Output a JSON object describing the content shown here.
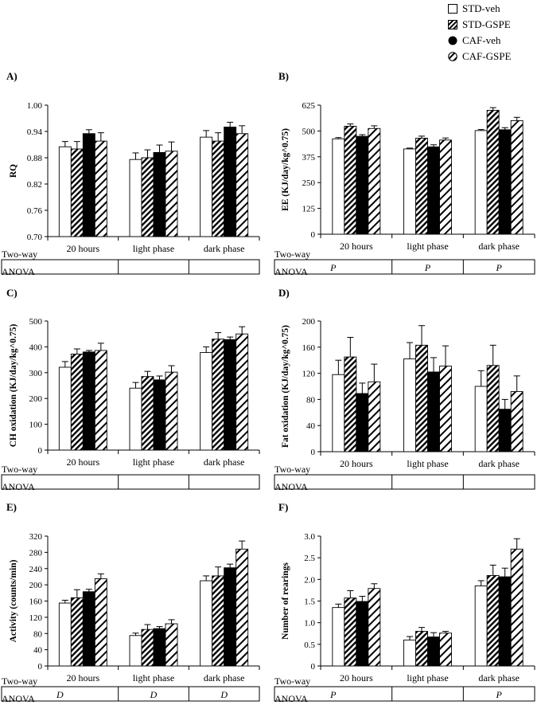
{
  "legend": [
    {
      "label": "STD-veh",
      "pattern": "white"
    },
    {
      "label": "STD-GSPE",
      "pattern": "hatch"
    },
    {
      "label": "CAF-veh",
      "pattern": "black"
    },
    {
      "label": "CAF-GSPE",
      "pattern": "hatch-white"
    }
  ],
  "colors": {
    "bar_black": "#000000",
    "bar_white": "#ffffff",
    "axis": "#000000",
    "stroke": "#000000"
  },
  "anova_label": [
    "Two-way",
    "ANOVA"
  ],
  "chart_data": [
    {
      "panel_label": "A)",
      "type": "bar",
      "ylabel": "RQ",
      "ylim": [
        0.7,
        1.0
      ],
      "yticks": [
        "0.70",
        "0.76",
        "0.82",
        "0.88",
        "0.94",
        "1.00"
      ],
      "categories": [
        "20 hours",
        "light phase",
        "dark phase"
      ],
      "series": [
        {
          "name": "STD-veh",
          "values": [
            0.905,
            0.876,
            0.927
          ],
          "err": [
            0.012,
            0.015,
            0.015
          ]
        },
        {
          "name": "STD-GSPE",
          "values": [
            0.9,
            0.88,
            0.918
          ],
          "err": [
            0.017,
            0.018,
            0.019
          ]
        },
        {
          "name": "CAF-veh",
          "values": [
            0.935,
            0.892,
            0.95
          ],
          "err": [
            0.009,
            0.017,
            0.011
          ]
        },
        {
          "name": "CAF-GSPE",
          "values": [
            0.918,
            0.895,
            0.935
          ],
          "err": [
            0.019,
            0.021,
            0.018
          ]
        }
      ],
      "anova": [
        "",
        "",
        ""
      ]
    },
    {
      "panel_label": "B)",
      "type": "bar",
      "ylabel": "EE (KJ/day/kg^0.75)",
      "ylim": [
        0,
        625
      ],
      "yticks": [
        "0",
        "125",
        "250",
        "375",
        "500",
        "625"
      ],
      "categories": [
        "20 hours",
        "light phase",
        "dark phase"
      ],
      "series": [
        {
          "name": "STD-veh",
          "values": [
            462,
            413,
            502
          ],
          "err": [
            6,
            4,
            5
          ]
        },
        {
          "name": "STD-GSPE",
          "values": [
            523,
            465,
            600
          ],
          "err": [
            11,
            10,
            13
          ]
        },
        {
          "name": "CAF-veh",
          "values": [
            474,
            423,
            506
          ],
          "err": [
            8,
            10,
            10
          ]
        },
        {
          "name": "CAF-GSPE",
          "values": [
            512,
            456,
            550
          ],
          "err": [
            13,
            10,
            16
          ]
        }
      ],
      "anova": [
        "P",
        "P",
        "P"
      ]
    },
    {
      "panel_label": "C)",
      "type": "bar",
      "ylabel": "CH oxidation  (KJ/day/kg^0.75)",
      "ylim": [
        0,
        500
      ],
      "yticks": [
        "0",
        "100",
        "200",
        "300",
        "400",
        "500"
      ],
      "categories": [
        "20 hours",
        "light phase",
        "dark phase"
      ],
      "series": [
        {
          "name": "STD-veh",
          "values": [
            321,
            240,
            378
          ],
          "err": [
            22,
            22,
            22
          ]
        },
        {
          "name": "STD-GSPE",
          "values": [
            372,
            285,
            430
          ],
          "err": [
            20,
            20,
            25
          ]
        },
        {
          "name": "CAF-veh",
          "values": [
            380,
            272,
            428
          ],
          "err": [
            6,
            15,
            10
          ]
        },
        {
          "name": "CAF-GSPE",
          "values": [
            386,
            302,
            450
          ],
          "err": [
            28,
            25,
            28
          ]
        }
      ],
      "anova": [
        "",
        "",
        ""
      ]
    },
    {
      "panel_label": "D)",
      "type": "bar",
      "ylabel": "Fat  oxidation  (KJ/day/kg^0.75)",
      "ylim": [
        0,
        200
      ],
      "yticks": [
        "0",
        "40",
        "80",
        "120",
        "160",
        "200"
      ],
      "categories": [
        "20 hours",
        "light phase",
        "dark phase"
      ],
      "series": [
        {
          "name": "STD-veh",
          "values": [
            118,
            142,
            100
          ],
          "err": [
            22,
            25,
            24
          ]
        },
        {
          "name": "STD-GSPE",
          "values": [
            145,
            163,
            132
          ],
          "err": [
            30,
            30,
            31
          ]
        },
        {
          "name": "CAF-veh",
          "values": [
            89,
            122,
            65
          ],
          "err": [
            16,
            22,
            15
          ]
        },
        {
          "name": "CAF-GSPE",
          "values": [
            107,
            131,
            92
          ],
          "err": [
            27,
            31,
            24
          ]
        }
      ],
      "anova": [
        "",
        "",
        ""
      ]
    },
    {
      "panel_label": "E)",
      "type": "bar",
      "ylabel": "Activity  (counts/min)",
      "ylim": [
        0,
        320
      ],
      "yticks": [
        "0",
        "40",
        "80",
        "120",
        "160",
        "200",
        "240",
        "280",
        "320"
      ],
      "categories": [
        "20 hours",
        "light phase",
        "dark phase"
      ],
      "series": [
        {
          "name": "STD-veh",
          "values": [
            155,
            75,
            210
          ],
          "err": [
            7,
            6,
            12
          ]
        },
        {
          "name": "STD-GSPE",
          "values": [
            168,
            90,
            222
          ],
          "err": [
            20,
            12,
            22
          ]
        },
        {
          "name": "CAF-veh",
          "values": [
            183,
            92,
            242
          ],
          "err": [
            6,
            5,
            9
          ]
        },
        {
          "name": "CAF-GSPE",
          "values": [
            215,
            104,
            288
          ],
          "err": [
            12,
            10,
            20
          ]
        }
      ],
      "anova": [
        "D",
        "D",
        "D"
      ]
    },
    {
      "panel_label": "F)",
      "type": "bar",
      "ylabel": "Number  of rearings",
      "ylim": [
        0,
        3.0
      ],
      "yticks": [
        "0",
        "0.5",
        "1.0",
        "1.5",
        "2.0",
        "2.5",
        "3.0"
      ],
      "categories": [
        "20 hours",
        "light phase",
        "dark phase"
      ],
      "series": [
        {
          "name": "STD-veh",
          "values": [
            1.35,
            0.6,
            1.85
          ],
          "err": [
            0.08,
            0.08,
            0.12
          ]
        },
        {
          "name": "STD-GSPE",
          "values": [
            1.57,
            0.8,
            2.09
          ],
          "err": [
            0.17,
            0.09,
            0.24
          ]
        },
        {
          "name": "CAF-veh",
          "values": [
            1.49,
            0.67,
            2.06
          ],
          "err": [
            0.12,
            0.1,
            0.2
          ]
        },
        {
          "name": "CAF-GSPE",
          "values": [
            1.79,
            0.76,
            2.7
          ],
          "err": [
            0.11,
            0.04,
            0.24
          ]
        }
      ],
      "anova": [
        "P",
        "",
        "P"
      ]
    }
  ]
}
